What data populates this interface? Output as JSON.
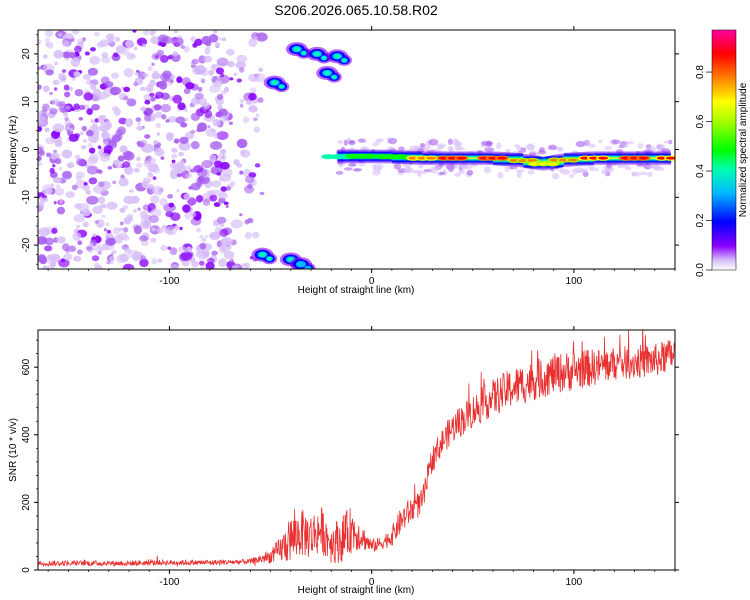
{
  "title": "S206.2026.065.10.58.R02",
  "colors": {
    "snr_line": "#e83030",
    "axis": "#000000",
    "background": "#ffffff"
  },
  "chart_data": [
    {
      "type": "heatmap",
      "title": "",
      "xlabel": "Height of straight line (km)",
      "ylabel": "Frequency (Hz)",
      "xlim": [
        -165,
        150
      ],
      "ylim": [
        -25,
        25
      ],
      "x_ticks": [
        -100,
        0,
        100
      ],
      "x_tick_labels": [
        "-100",
        "0",
        "100"
      ],
      "y_ticks": [
        -20,
        -10,
        0,
        10,
        20
      ],
      "y_tick_labels": [
        "-20",
        "-10",
        "0",
        "10",
        "20"
      ],
      "colorbar": {
        "label": "Normalized spectral amplitude",
        "range": [
          0,
          0.97
        ],
        "ticks": [
          0.0,
          0.2,
          0.4,
          0.6,
          0.8
        ],
        "tick_labels": [
          "0.0",
          "0.2",
          "0.4",
          "0.6",
          "0.8"
        ]
      },
      "features": [
        {
          "name": "noise-speckle-region",
          "x_range": [
            -165,
            -58
          ],
          "freq_range": [
            -25,
            25
          ],
          "amplitude": 0.05
        },
        {
          "name": "upper-blob-1",
          "x": -48,
          "freq": 14,
          "amplitude": 0.3
        },
        {
          "name": "upper-blob-2",
          "x": -37,
          "freq": 21,
          "amplitude": 0.25
        },
        {
          "name": "upper-blob-3",
          "x": -27,
          "freq": 20,
          "amplitude": 0.45
        },
        {
          "name": "upper-blob-4",
          "x": -22,
          "freq": 16,
          "amplitude": 0.4
        },
        {
          "name": "upper-blob-5",
          "x": -17,
          "freq": 19.5,
          "amplitude": 0.45
        },
        {
          "name": "lower-blob-1",
          "x": -54,
          "freq": -22,
          "amplitude": 0.3
        },
        {
          "name": "lower-blob-2",
          "x": -40,
          "freq": -23,
          "amplitude": 0.25
        },
        {
          "name": "lower-blob-3",
          "x": -35,
          "freq": -24,
          "amplitude": 0.2
        }
      ],
      "ridge": {
        "x": [
          -17,
          -5,
          10,
          25,
          40,
          60,
          75,
          85,
          95,
          110,
          130,
          148
        ],
        "freq": [
          -1.5,
          -1.4,
          -1.5,
          -1.8,
          -1.8,
          -1.8,
          -2.3,
          -3,
          -2.2,
          -1.8,
          -1.8,
          -1.8
        ],
        "amplitude": [
          0.55,
          0.6,
          0.7,
          0.85,
          0.95,
          0.95,
          0.8,
          0.75,
          0.8,
          0.9,
          0.95,
          0.9
        ]
      }
    },
    {
      "type": "line",
      "title": "",
      "xlabel": "Height of straight line (km)",
      "ylabel": "SNR (10 * v/v)",
      "xlim": [
        -165,
        150
      ],
      "ylim": [
        0,
        710
      ],
      "x_ticks": [
        -100,
        0,
        100
      ],
      "x_tick_labels": [
        "-100",
        "0",
        "100"
      ],
      "y_ticks": [
        0,
        200,
        400,
        600
      ],
      "y_tick_labels": [
        "0",
        "200",
        "400",
        "600"
      ],
      "series": [
        {
          "name": "SNR",
          "x": [
            -165,
            -140,
            -120,
            -100,
            -80,
            -60,
            -50,
            -45,
            -40,
            -35,
            -30,
            -25,
            -20,
            -15,
            -10,
            -5,
            0,
            5,
            10,
            15,
            20,
            25,
            30,
            35,
            40,
            50,
            60,
            70,
            80,
            90,
            100,
            110,
            120,
            130,
            140,
            150
          ],
          "values": [
            20,
            20,
            20,
            22,
            22,
            25,
            40,
            60,
            90,
            110,
            100,
            120,
            80,
            90,
            120,
            100,
            70,
            80,
            100,
            150,
            180,
            200,
            330,
            380,
            420,
            470,
            510,
            540,
            560,
            580,
            590,
            600,
            610,
            615,
            620,
            640
          ],
          "noise": [
            8,
            8,
            8,
            8,
            8,
            8,
            20,
            40,
            70,
            70,
            70,
            70,
            60,
            70,
            70,
            40,
            20,
            20,
            30,
            40,
            40,
            40,
            40,
            40,
            45,
            50,
            55,
            60,
            60,
            60,
            60,
            55,
            50,
            50,
            50,
            50
          ]
        }
      ]
    }
  ]
}
